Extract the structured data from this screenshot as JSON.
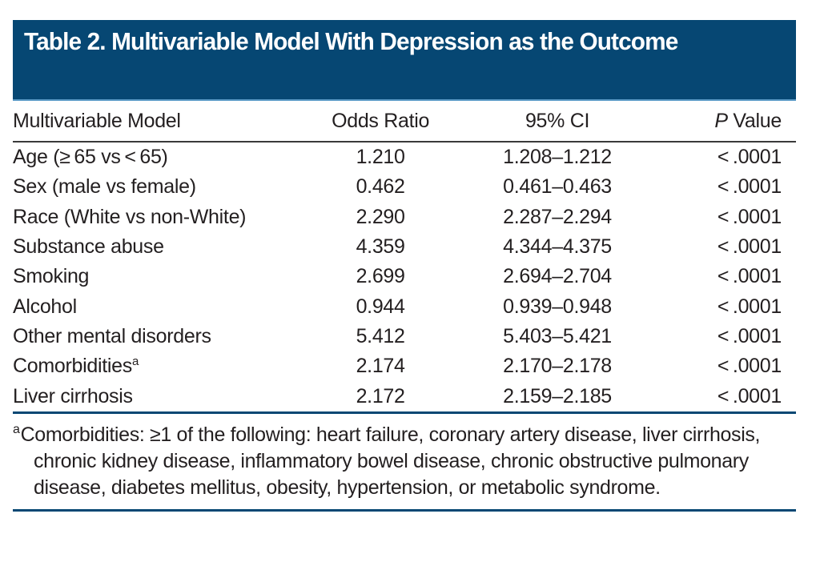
{
  "title": "Table 2. Multivariable Model With Depression as the Outcome",
  "columns": {
    "model": "Multivariable Model",
    "odds_ratio": "Odds Ratio",
    "ci": "95% CI",
    "p_italic": "P",
    "p_rest": " Value"
  },
  "rows": [
    {
      "model": "Age (≥ 65 vs < 65)",
      "sup": "",
      "odds_ratio": "1.210",
      "ci": "1.208–1.212",
      "p": "< .0001"
    },
    {
      "model": "Sex (male vs female)",
      "sup": "",
      "odds_ratio": "0.462",
      "ci": "0.461–0.463",
      "p": "< .0001"
    },
    {
      "model": "Race (White vs non-White)",
      "sup": "",
      "odds_ratio": "2.290",
      "ci": "2.287–2.294",
      "p": "< .0001"
    },
    {
      "model": "Substance abuse",
      "sup": "",
      "odds_ratio": "4.359",
      "ci": "4.344–4.375",
      "p": "< .0001"
    },
    {
      "model": "Smoking",
      "sup": "",
      "odds_ratio": "2.699",
      "ci": "2.694–2.704",
      "p": "< .0001"
    },
    {
      "model": "Alcohol",
      "sup": "",
      "odds_ratio": "0.944",
      "ci": "0.939–0.948",
      "p": "< .0001"
    },
    {
      "model": "Other mental disorders",
      "sup": "",
      "odds_ratio": "5.412",
      "ci": "5.403–5.421",
      "p": "< .0001"
    },
    {
      "model": "Comorbidities",
      "sup": "a",
      "odds_ratio": "2.174",
      "ci": "2.170–2.178",
      "p": "< .0001"
    },
    {
      "model": "Liver cirrhosis",
      "sup": "",
      "odds_ratio": "2.172",
      "ci": "2.159–2.185",
      "p": "< .0001"
    }
  ],
  "footnote": {
    "marker": "a",
    "text": "Comorbidities: ≥1 of the following: heart failure, coronary artery disease, liver cirrhosis, chronic kidney disease, inflammatory bowel disease, chronic obstructive pulmonary disease, diabetes mellitus, obesity, hypertension, or metabolic syndrome."
  }
}
